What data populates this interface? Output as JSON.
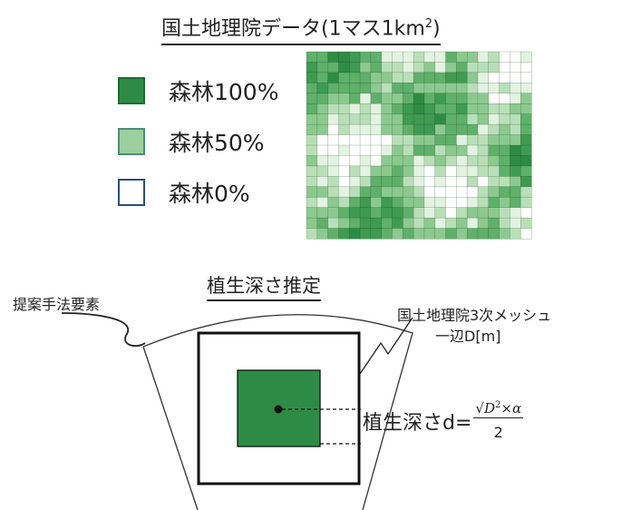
{
  "top_title": {
    "text": "国土地理院データ(1マス1km",
    "sup": "2",
    "close": ")"
  },
  "legend": [
    {
      "label": "森林100%",
      "color": "#2e8b45",
      "border": "#1f6b33"
    },
    {
      "label": "森林50%",
      "color": "#9ccf9e",
      "border": "#4f8a7c"
    },
    {
      "label": "森林0%",
      "color": "#ffffff",
      "border": "#2a4f7a"
    }
  ],
  "bottom_title": "植生深さ推定",
  "label_method": "提案手法要素",
  "label_mesh_line1": "国土地理院3次メッシュ",
  "label_mesh_line2": "一辺D[m]",
  "formula": {
    "prefix": "植生深さd=",
    "numerator_sqrt": "√",
    "numerator_var": "D",
    "numerator_sq": "2",
    "numerator_rest": "×α",
    "denominator": "2"
  },
  "colors": {
    "forest_dark": "#2e8b45",
    "forest_mid": "#9ccf9e",
    "outline": "#111111"
  }
}
